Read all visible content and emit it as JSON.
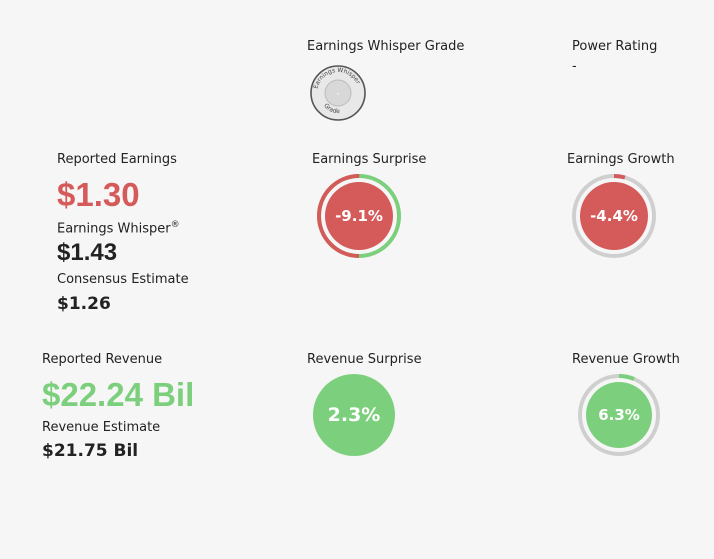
{
  "grade": {
    "label": "Earnings Whisper Grade",
    "badge_top_text": "Earnings Whisper",
    "badge_bottom_text": "Grade",
    "value": "-"
  },
  "power": {
    "label": "Power Rating",
    "value": "-"
  },
  "earnings": {
    "reported_label": "Reported Earnings",
    "reported_value": "$1.30",
    "whisper_label": "Earnings Whisper",
    "whisper_sup": "®",
    "whisper_value": "$1.43",
    "consensus_label": "Consensus Estimate",
    "consensus_value": "$1.26",
    "surprise_label": "Earnings Surprise",
    "surprise_value": "-9.1%",
    "surprise_fraction": 0.091,
    "growth_label": "Earnings Growth",
    "growth_value": "-4.4%",
    "growth_fraction": 0.044
  },
  "revenue": {
    "reported_label": "Reported Revenue",
    "reported_value": "$22.24 Bil",
    "estimate_label": "Revenue Estimate",
    "estimate_value": "$21.75 Bil",
    "surprise_label": "Revenue Surprise",
    "surprise_value": "2.3%",
    "growth_label": "Revenue Growth",
    "growth_value": "6.3%",
    "growth_fraction": 0.063
  },
  "colors": {
    "red": "#d55a5a",
    "green": "#7ccf7c",
    "gray": "#cfcfcf",
    "text": "#222222"
  }
}
